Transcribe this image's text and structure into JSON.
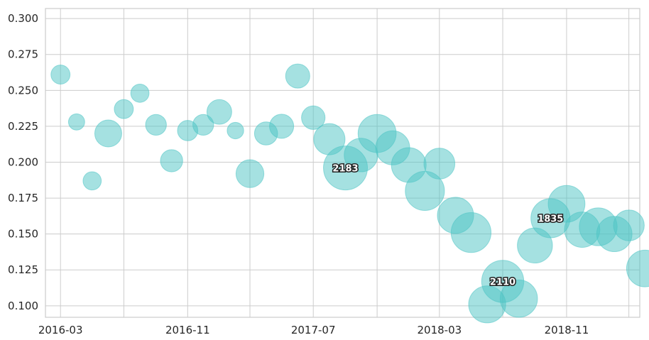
{
  "chart_data": {
    "type": "scatter",
    "title": "",
    "xlabel": "",
    "ylabel": "",
    "x_axis_type": "date",
    "xlim": [
      "2016-02-01",
      "2019-03-22"
    ],
    "ylim": [
      0.092,
      0.307
    ],
    "x_ticks": [
      "2016-03",
      "2016-11",
      "2017-07",
      "2018-03",
      "2018-11"
    ],
    "x_minor_grid_months": [
      "2016-07",
      "2017-03",
      "2017-11",
      "2018-07",
      "2019-03"
    ],
    "y_ticks": [
      "0.100",
      "0.125",
      "0.150",
      "0.175",
      "0.200",
      "0.225",
      "0.250",
      "0.275",
      "0.300"
    ],
    "grid": true,
    "color": "#4cc4c4",
    "points": [
      {
        "x": "2016-03",
        "y": 0.261,
        "size": 180
      },
      {
        "x": "2016-04",
        "y": 0.228,
        "size": 130
      },
      {
        "x": "2016-05",
        "y": 0.187,
        "size": 165
      },
      {
        "x": "2016-06",
        "y": 0.22,
        "size": 360
      },
      {
        "x": "2016-07",
        "y": 0.237,
        "size": 180
      },
      {
        "x": "2016-08",
        "y": 0.248,
        "size": 165
      },
      {
        "x": "2016-09",
        "y": 0.226,
        "size": 215
      },
      {
        "x": "2016-10",
        "y": 0.201,
        "size": 245
      },
      {
        "x": "2016-11",
        "y": 0.222,
        "size": 205
      },
      {
        "x": "2016-12",
        "y": 0.226,
        "size": 215
      },
      {
        "x": "2017-01",
        "y": 0.235,
        "size": 305
      },
      {
        "x": "2017-02",
        "y": 0.222,
        "size": 135
      },
      {
        "x": "2017-03",
        "y": 0.192,
        "size": 385
      },
      {
        "x": "2017-04",
        "y": 0.22,
        "size": 265
      },
      {
        "x": "2017-05",
        "y": 0.225,
        "size": 290
      },
      {
        "x": "2017-06",
        "y": 0.26,
        "size": 290
      },
      {
        "x": "2017-07",
        "y": 0.231,
        "size": 275
      },
      {
        "x": "2017-08",
        "y": 0.216,
        "size": 485
      },
      {
        "x": "2017-09",
        "y": 0.196,
        "size": 960,
        "label": "2183"
      },
      {
        "x": "2017-10",
        "y": 0.205,
        "size": 560
      },
      {
        "x": "2017-11",
        "y": 0.22,
        "size": 720
      },
      {
        "x": "2017-12",
        "y": 0.21,
        "size": 575
      },
      {
        "x": "2018-01",
        "y": 0.198,
        "size": 600
      },
      {
        "x": "2018-02",
        "y": 0.18,
        "size": 760
      },
      {
        "x": "2018-03",
        "y": 0.199,
        "size": 475
      },
      {
        "x": "2018-04",
        "y": 0.163,
        "size": 650
      },
      {
        "x": "2018-05",
        "y": 0.151,
        "size": 790
      },
      {
        "x": "2018-06",
        "y": 0.101,
        "size": 680
      },
      {
        "x": "2018-07",
        "y": 0.117,
        "size": 880,
        "label": "2110"
      },
      {
        "x": "2018-08",
        "y": 0.105,
        "size": 690
      },
      {
        "x": "2018-09",
        "y": 0.142,
        "size": 610
      },
      {
        "x": "2018-10",
        "y": 0.161,
        "size": 760,
        "label": "1835"
      },
      {
        "x": "2018-11",
        "y": 0.171,
        "size": 670
      },
      {
        "x": "2018-12",
        "y": 0.153,
        "size": 620
      },
      {
        "x": "2019-01",
        "y": 0.155,
        "size": 710
      },
      {
        "x": "2019-02",
        "y": 0.15,
        "size": 620
      },
      {
        "x": "2019-03",
        "y": 0.156,
        "size": 470
      },
      {
        "x": "2019-04",
        "y": 0.126,
        "size": 670
      }
    ]
  }
}
